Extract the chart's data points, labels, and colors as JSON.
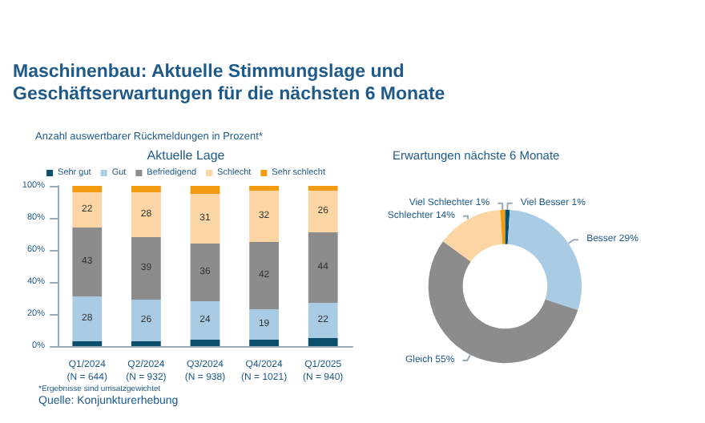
{
  "chart_data": [
    {
      "type": "bar",
      "stacked": true,
      "title": "Aktuelle Lage",
      "ylabel": "Anzahl auswertbarer Rückmeldungen in Prozent*",
      "annotations": [
        "Maschinenbau: Aktuelle Stimmungslage und Geschäftserwartungen für die nächsten 6 Monate",
        "*Ergebnisse sind umsatzgewichtet",
        "Quelle: Konjunkturerhebung"
      ],
      "categories": [
        "Q1/2024\n(N = 644)",
        "Q2/2024\n(N = 932)",
        "Q3/2024\n(N = 938)",
        "Q4/2024\n(N = 1021)",
        "Q1/2025\n(N = 940)"
      ],
      "series": [
        {
          "name": "Sehr gut",
          "color": "#0b4f6c",
          "values": [
            3,
            3,
            4,
            4,
            5
          ]
        },
        {
          "name": "Gut",
          "color": "#a9cbe3",
          "values": [
            28,
            26,
            24,
            19,
            22
          ],
          "value_labels": [
            "28",
            "26",
            "24",
            "19",
            "22"
          ]
        },
        {
          "name": "Befriedigend",
          "color": "#8c8c8c",
          "values": [
            43,
            39,
            36,
            42,
            44
          ],
          "value_labels": [
            "43",
            "39",
            "36",
            "42",
            "44"
          ]
        },
        {
          "name": "Schlecht",
          "color": "#fcd5a5",
          "values": [
            22,
            28,
            31,
            32,
            26
          ],
          "value_labels": [
            "22",
            "28",
            "31",
            "32",
            "26"
          ]
        },
        {
          "name": "Sehr schlecht",
          "color": "#f39c12",
          "values": [
            4,
            4,
            5,
            3,
            3
          ]
        }
      ],
      "ylim": [
        0,
        100
      ],
      "yticks": [
        {
          "value": 0,
          "label": "0%"
        },
        {
          "value": 20,
          "label": "20%"
        },
        {
          "value": 40,
          "label": "40%"
        },
        {
          "value": 60,
          "label": "60%"
        },
        {
          "value": 80,
          "label": "80%"
        },
        {
          "value": 100,
          "label": "100%"
        }
      ],
      "legend": "top",
      "grid": false
    },
    {
      "type": "donut",
      "title": "Erwartungen nächste 6 Monate",
      "categories": [
        "Viel Besser",
        "Besser",
        "Gleich",
        "Schlechter",
        "Viel Schlechter"
      ],
      "values": [
        1,
        29,
        55,
        14,
        1
      ],
      "value_labels": [
        "1%",
        "29%",
        "55%",
        "14%",
        "1%"
      ],
      "colors": [
        "#0b4f6c",
        "#a9cbe3",
        "#8c8c8c",
        "#fcd5a5",
        "#f39c12"
      ],
      "legend": false
    }
  ]
}
